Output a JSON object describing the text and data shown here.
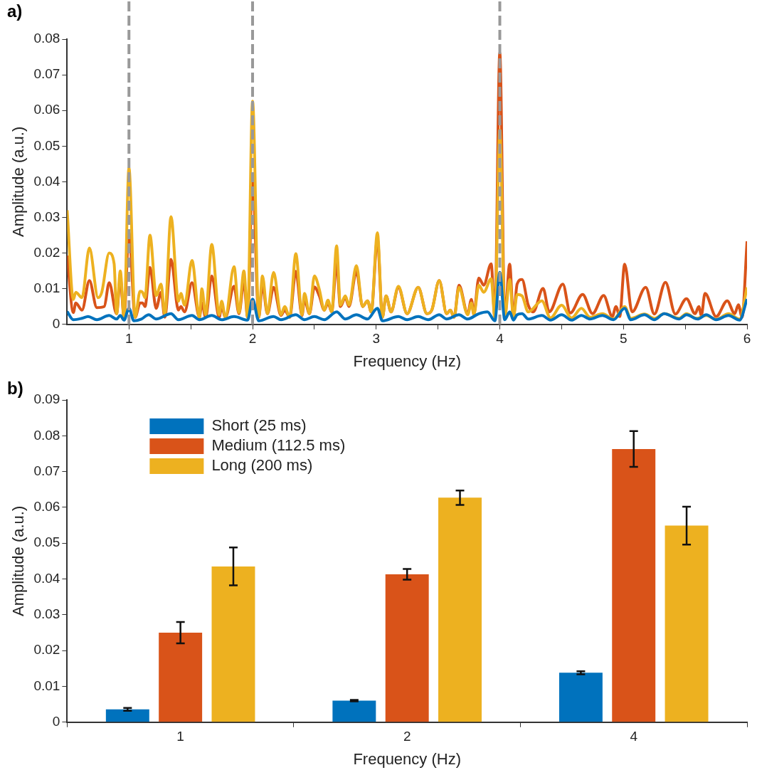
{
  "chart_data": [
    {
      "type": "line",
      "xlabel": "Frequency (Hz)",
      "ylabel": "Amplitude (a.u.)",
      "annotations": [
        "a)"
      ],
      "xlim": [
        0.5,
        6
      ],
      "xticks": [
        1,
        {
          "value": 1.5,
          "label": null
        },
        2,
        {
          "value": 2.5,
          "label": null
        },
        3,
        {
          "value": 3.5,
          "label": null
        },
        4,
        {
          "value": 4.5,
          "label": null
        },
        5,
        {
          "value": 5.5,
          "label": null
        },
        6
      ],
      "ylim": [
        0,
        0.08
      ],
      "yticks": [
        0,
        0.01,
        0.02,
        0.03,
        0.04,
        0.05,
        0.06,
        0.07,
        0.08
      ],
      "ref_lines": [
        {
          "axis": "x",
          "value": 1,
          "color": "#999999",
          "line_style": "dashed"
        },
        {
          "axis": "x",
          "value": 2,
          "color": "#999999",
          "line_style": "dashed"
        },
        {
          "axis": "x",
          "value": 4,
          "color": "#999999",
          "line_style": "dashed"
        }
      ],
      "series": [
        {
          "color": "#d95319",
          "x": [
            0.5,
            0.55,
            0.57,
            0.62,
            0.68,
            0.74,
            0.8,
            0.84,
            0.9,
            0.93,
            0.96,
            1.0,
            1.05,
            1.09,
            1.11,
            1.13,
            1.17,
            1.22,
            1.26,
            1.29,
            1.34,
            1.4,
            1.42,
            1.45,
            1.51,
            1.57,
            1.59,
            1.62,
            1.67,
            1.73,
            1.75,
            1.78,
            1.85,
            1.89,
            1.93,
            1.96,
            2.0,
            2.05,
            2.08,
            2.12,
            2.17,
            2.23,
            2.26,
            2.3,
            2.35,
            2.4,
            2.42,
            2.46,
            2.5,
            2.54,
            2.58,
            2.61,
            2.64,
            2.68,
            2.71,
            2.75,
            2.78,
            2.84,
            2.89,
            2.93,
            2.96,
            3.01,
            3.05,
            3.08,
            3.12,
            3.18,
            3.25,
            3.34,
            3.41,
            3.45,
            3.51,
            3.57,
            3.6,
            3.63,
            3.67,
            3.74,
            3.77,
            3.79,
            3.83,
            3.87,
            3.93,
            3.96,
            4.0,
            4.04,
            4.08,
            4.11,
            4.14,
            4.18,
            4.23,
            4.27,
            4.35,
            4.4,
            4.51,
            4.57,
            4.67,
            4.75,
            4.84,
            4.91,
            4.94,
            4.97,
            5.01,
            5.07,
            5.18,
            5.25,
            5.34,
            5.42,
            5.51,
            5.58,
            5.61,
            5.63,
            5.66,
            5.75,
            5.84,
            5.9,
            5.93,
            5.96,
            6.0
          ],
          "values": [
            0.0193,
            0.0033,
            0.006,
            0.004,
            0.0123,
            0.0047,
            0.005,
            0.0117,
            0.003,
            0.013,
            0.002,
            0.0259,
            0.002,
            0.006,
            0.006,
            0.005,
            0.016,
            0.0045,
            0.009,
            0.002,
            0.0182,
            0.004,
            0.005,
            0.0035,
            0.0117,
            0.002,
            0.006,
            0.002,
            0.0136,
            0.002,
            0.005,
            0.002,
            0.0107,
            0.003,
            0.012,
            0.002,
            0.0415,
            0.002,
            0.011,
            0.003,
            0.0104,
            0.0025,
            0.004,
            0.002,
            0.0149,
            0.0025,
            0.007,
            0.003,
            0.0105,
            0.008,
            0.004,
            0.006,
            0.0035,
            0.0171,
            0.005,
            0.0075,
            0.005,
            0.0149,
            0.005,
            0.0066,
            0.0035,
            0.024,
            0.002,
            0.008,
            0.0035,
            0.0104,
            0.003,
            0.0104,
            0.003,
            0.004,
            0.0123,
            0.003,
            0.004,
            0.002,
            0.011,
            0.003,
            0.007,
            0.003,
            0.013,
            0.011,
            0.017,
            0.002,
            0.0762,
            0.002,
            0.0169,
            0.002,
            0.0113,
            0.0126,
            0.0054,
            0.0035,
            0.0101,
            0.0035,
            0.0113,
            0.0032,
            0.0084,
            0.003,
            0.0081,
            0.0022,
            0.005,
            0.0022,
            0.0169,
            0.0035,
            0.0104,
            0.0029,
            0.0118,
            0.0029,
            0.0072,
            0.003,
            0.005,
            0.0025,
            0.0087,
            0.0022,
            0.0066,
            0.003,
            0.0055,
            0.002,
            0.0233
          ]
        },
        {
          "color": "#edb120",
          "x": [
            0.5,
            0.55,
            0.57,
            0.62,
            0.68,
            0.75,
            0.78,
            0.84,
            0.88,
            0.9,
            0.93,
            0.96,
            1.0,
            1.05,
            1.09,
            1.11,
            1.13,
            1.17,
            1.22,
            1.26,
            1.29,
            1.34,
            1.4,
            1.42,
            1.45,
            1.51,
            1.57,
            1.59,
            1.62,
            1.67,
            1.73,
            1.75,
            1.78,
            1.85,
            1.89,
            1.93,
            1.96,
            2.0,
            2.05,
            2.08,
            2.12,
            2.17,
            2.23,
            2.26,
            2.3,
            2.35,
            2.4,
            2.42,
            2.46,
            2.5,
            2.54,
            2.58,
            2.61,
            2.64,
            2.68,
            2.71,
            2.75,
            2.78,
            2.84,
            2.89,
            2.93,
            2.96,
            3.01,
            3.05,
            3.08,
            3.12,
            3.18,
            3.25,
            3.34,
            3.41,
            3.45,
            3.51,
            3.57,
            3.6,
            3.63,
            3.67,
            3.74,
            3.77,
            3.79,
            3.83,
            3.87,
            3.93,
            3.96,
            4.0,
            4.04,
            4.08,
            4.11,
            4.14,
            4.18,
            4.23,
            4.34,
            4.41,
            4.5,
            4.58,
            4.66,
            4.73,
            4.83,
            4.92,
            5.01,
            5.06,
            5.17,
            5.25,
            5.33,
            5.45,
            5.51,
            5.59,
            5.67,
            5.75,
            5.85,
            5.94,
            6.0
          ],
          "values": [
            0.032,
            0.007,
            0.009,
            0.0075,
            0.0214,
            0.0075,
            0.009,
            0.02,
            0.017,
            0.003,
            0.015,
            0.002,
            0.0438,
            0.002,
            0.0093,
            0.009,
            0.0075,
            0.025,
            0.0081,
            0.0113,
            0.0027,
            0.0302,
            0.0065,
            0.0087,
            0.0054,
            0.0179,
            0.002,
            0.01,
            0.0027,
            0.0224,
            0.0027,
            0.0065,
            0.002,
            0.0162,
            0.0033,
            0.015,
            0.002,
            0.0626,
            0.002,
            0.0136,
            0.003,
            0.0146,
            0.0027,
            0.005,
            0.002,
            0.0198,
            0.0027,
            0.0087,
            0.003,
            0.0136,
            0.0098,
            0.004,
            0.0068,
            0.0035,
            0.022,
            0.0054,
            0.008,
            0.0054,
            0.0165,
            0.005,
            0.0066,
            0.0035,
            0.0257,
            0.002,
            0.008,
            0.0035,
            0.0107,
            0.003,
            0.0104,
            0.003,
            0.004,
            0.0123,
            0.003,
            0.004,
            0.002,
            0.0104,
            0.0027,
            0.006,
            0.0027,
            0.011,
            0.009,
            0.0128,
            0.002,
            0.0545,
            0.002,
            0.0126,
            0.002,
            0.0084,
            0.008,
            0.0035,
            0.0066,
            0.0018,
            0.0054,
            0.0018,
            0.0045,
            0.002,
            0.003,
            0.0015,
            0.005,
            0.0017,
            0.0029,
            0.0017,
            0.003,
            0.0017,
            0.003,
            0.0017,
            0.0025,
            0.0014,
            0.003,
            0.0015,
            0.0104
          ]
        },
        {
          "color": "#0072bd",
          "x": [
            0.5,
            0.55,
            0.62,
            0.67,
            0.74,
            0.84,
            0.9,
            0.93,
            0.96,
            1.0,
            1.04,
            1.1,
            1.16,
            1.22,
            1.34,
            1.4,
            1.51,
            1.57,
            1.67,
            1.75,
            1.85,
            1.96,
            2.0,
            2.05,
            2.17,
            2.23,
            2.35,
            2.42,
            2.5,
            2.58,
            2.68,
            2.75,
            2.84,
            2.93,
            3.01,
            3.05,
            3.18,
            3.25,
            3.34,
            3.42,
            3.51,
            3.57,
            3.67,
            3.74,
            3.83,
            3.9,
            3.96,
            4.0,
            4.04,
            4.08,
            4.11,
            4.14,
            4.18,
            4.23,
            4.34,
            4.41,
            4.5,
            4.58,
            4.66,
            4.73,
            4.83,
            4.92,
            5.01,
            5.06,
            5.17,
            5.25,
            5.33,
            5.45,
            5.51,
            5.6,
            5.67,
            5.75,
            5.85,
            5.94,
            6.0
          ],
          "values": [
            0.0036,
            0.0013,
            0.0017,
            0.0022,
            0.0013,
            0.0025,
            0.0015,
            0.0025,
            0.0012,
            0.0045,
            0.001,
            0.0015,
            0.0027,
            0.0015,
            0.003,
            0.0013,
            0.0025,
            0.0013,
            0.0025,
            0.0013,
            0.0022,
            0.0012,
            0.0071,
            0.001,
            0.0022,
            0.0013,
            0.0027,
            0.0013,
            0.0022,
            0.0013,
            0.0035,
            0.0015,
            0.0027,
            0.0015,
            0.0045,
            0.001,
            0.0022,
            0.0013,
            0.0022,
            0.0013,
            0.0027,
            0.0015,
            0.0027,
            0.0015,
            0.003,
            0.0035,
            0.001,
            0.0146,
            0.0013,
            0.0035,
            0.0012,
            0.0027,
            0.003,
            0.0015,
            0.0025,
            0.0012,
            0.0027,
            0.0012,
            0.0025,
            0.0015,
            0.0025,
            0.0013,
            0.0045,
            0.0013,
            0.0027,
            0.0013,
            0.003,
            0.0015,
            0.0027,
            0.0015,
            0.0027,
            0.0013,
            0.0025,
            0.0012,
            0.0071
          ]
        }
      ]
    },
    {
      "type": "bar",
      "xlabel": "Frequency (Hz)",
      "ylabel": "Amplitude (a.u.)",
      "annotations": [
        "b)"
      ],
      "legend": "top left",
      "categories": [
        "1",
        "2",
        "4"
      ],
      "ylim": [
        0,
        0.09
      ],
      "yticks": [
        0,
        0.01,
        0.02,
        0.03,
        0.04,
        0.05,
        0.06,
        0.07,
        0.08,
        0.09
      ],
      "series": [
        {
          "name": "Short (25 ms)",
          "color": "#0072bd",
          "values": [
            0.0036,
            0.006,
            0.0138
          ],
          "errors": [
            0.0004,
            0.0002,
            0.0004
          ]
        },
        {
          "name": "Medium (112.5 ms)",
          "color": "#d95319",
          "values": [
            0.025,
            0.0413,
            0.0763
          ],
          "errors": [
            0.003,
            0.0015,
            0.005
          ]
        },
        {
          "name": "Long (200 ms)",
          "color": "#edb120",
          "values": [
            0.0435,
            0.0627,
            0.0549
          ],
          "errors": [
            0.0053,
            0.002,
            0.0053
          ]
        }
      ]
    }
  ]
}
